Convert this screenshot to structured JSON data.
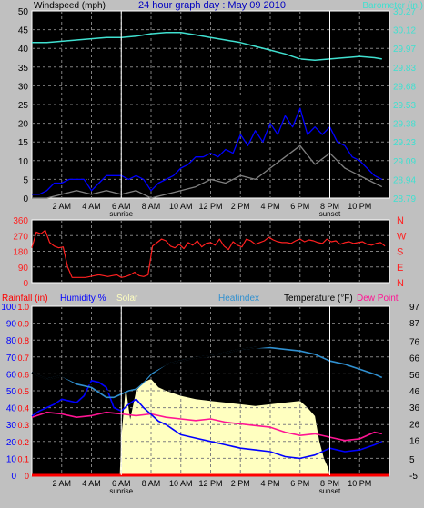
{
  "title": "24 hour graph day : May 09 2010",
  "colors": {
    "background": "#c0c0c0",
    "plot": "#000000",
    "grid": "#808080",
    "windspeed": "#000000",
    "windspeed_avg": "#0000ff",
    "windspeed_low": "#808080",
    "barometer": "#40e0d0",
    "direction": "#ff2020",
    "rainfall": "#ff0000",
    "humidity": "#0000ff",
    "solar": "#ffffc0",
    "heatindex": "#3090d0",
    "temperature": "#000000",
    "dewpoint": "#ff1493",
    "sun_marker": "#000000"
  },
  "labels": {
    "sunrise": "sunrise",
    "sunset": "sunset"
  },
  "chart_data": [
    {
      "type": "line",
      "ylabel": "Windspeed (mph)",
      "y2label": "Barometer (in.)",
      "ylim": [
        0,
        50
      ],
      "y2lim": [
        28.79,
        30.27
      ],
      "yticks": [
        "0",
        "5",
        "10",
        "15",
        "20",
        "25",
        "30",
        "35",
        "40",
        "45",
        "50"
      ],
      "y2ticks": [
        "28.79",
        "28.94",
        "29.09",
        "29.23",
        "29.38",
        "29.53",
        "29.68",
        "29.83",
        "29.97",
        "30.12",
        "30.27"
      ],
      "xlim": [
        0,
        24
      ],
      "xticks": [
        {
          "x": 2,
          "label": "2 AM"
        },
        {
          "x": 4,
          "label": "4 AM"
        },
        {
          "x": 6,
          "label": "6 AM"
        },
        {
          "x": 8,
          "label": "8 AM"
        },
        {
          "x": 10,
          "label": "10 AM"
        },
        {
          "x": 12,
          "label": "12 PM"
        },
        {
          "x": 14,
          "label": "2 PM"
        },
        {
          "x": 16,
          "label": "4 PM"
        },
        {
          "x": 18,
          "label": "6 PM"
        },
        {
          "x": 20,
          "label": "8 PM"
        },
        {
          "x": 22,
          "label": "10 PM"
        }
      ],
      "sunrise": 6,
      "sunset": 20,
      "series": [
        {
          "name": "Windspeed",
          "axis": "y",
          "x": [
            0,
            0.5,
            1,
            1.5,
            2,
            2.5,
            3,
            3.5,
            4,
            4.5,
            5,
            5.5,
            6,
            6.5,
            7,
            7.5,
            8,
            8.5,
            9,
            9.5,
            10,
            10.5,
            11,
            11.5,
            12,
            12.5,
            13,
            13.5,
            14,
            14.5,
            15,
            15.5,
            16,
            16.5,
            17,
            17.5,
            18,
            18.5,
            19,
            19.5,
            20,
            20.5,
            21,
            21.5,
            22,
            22.5,
            23,
            23.5
          ],
          "y": [
            1,
            2,
            3,
            6,
            8,
            9,
            7,
            8,
            2,
            8,
            9,
            8,
            9,
            7,
            10,
            6,
            3,
            7,
            8,
            11,
            14,
            15,
            17,
            16,
            21,
            18,
            22,
            19,
            27,
            20,
            29,
            23,
            33,
            25,
            35,
            29,
            37,
            23,
            32,
            24,
            27,
            22,
            21,
            15,
            13,
            10,
            8,
            6
          ]
        },
        {
          "name": "Windspeed Avg",
          "axis": "y",
          "x": [
            0,
            0.5,
            1,
            1.5,
            2,
            2.5,
            3,
            3.5,
            4,
            4.5,
            5,
            5.5,
            6,
            6.5,
            7,
            7.5,
            8,
            8.5,
            9,
            9.5,
            10,
            10.5,
            11,
            11.5,
            12,
            12.5,
            13,
            13.5,
            14,
            14.5,
            15,
            15.5,
            16,
            16.5,
            17,
            17.5,
            18,
            18.5,
            19,
            19.5,
            20,
            20.5,
            21,
            21.5,
            22,
            22.5,
            23,
            23.5
          ],
          "y": [
            1,
            1,
            2,
            4,
            4,
            5,
            5,
            5,
            2,
            4,
            6,
            6,
            6,
            5,
            6,
            5,
            2,
            4,
            5,
            6,
            8,
            9,
            11,
            11,
            12,
            11,
            13,
            12,
            17,
            14,
            18,
            15,
            20,
            17,
            22,
            19,
            24,
            17,
            19,
            17,
            19,
            15,
            14,
            11,
            10,
            8,
            6,
            5
          ]
        },
        {
          "name": "Windspeed Low",
          "axis": "y",
          "x": [
            0,
            1,
            2,
            3,
            4,
            5,
            6,
            7,
            8,
            9,
            10,
            11,
            12,
            13,
            14,
            15,
            16,
            17,
            18,
            19,
            20,
            21,
            22,
            23,
            23.5
          ],
          "y": [
            0,
            0,
            1,
            2,
            1,
            2,
            1,
            2,
            0,
            1,
            2,
            3,
            5,
            4,
            6,
            5,
            8,
            11,
            14,
            9,
            12,
            8,
            6,
            4,
            3
          ]
        },
        {
          "name": "Barometer",
          "axis": "y2",
          "x": [
            0,
            1,
            2,
            3,
            4,
            5,
            6,
            7,
            8,
            9,
            10,
            11,
            12,
            13,
            14,
            15,
            16,
            17,
            18,
            19,
            20,
            21,
            22,
            23,
            23.5
          ],
          "y": [
            30.02,
            30.02,
            30.03,
            30.04,
            30.05,
            30.06,
            30.06,
            30.07,
            30.09,
            30.1,
            30.1,
            30.08,
            30.06,
            30.04,
            30.02,
            29.99,
            29.96,
            29.93,
            29.89,
            29.88,
            29.89,
            29.9,
            29.91,
            29.9,
            29.89
          ]
        }
      ]
    },
    {
      "type": "line",
      "ylim": [
        0,
        360
      ],
      "yticks": [
        "0",
        "90",
        "180",
        "270",
        "360"
      ],
      "y2ticks": [
        "N",
        "E",
        "S",
        "W",
        "N"
      ],
      "xlim": [
        0,
        24
      ],
      "series": [
        {
          "name": "Wind Direction",
          "x": [
            0,
            0.3,
            0.6,
            0.9,
            1.2,
            1.5,
            1.8,
            2.1,
            2.4,
            2.7,
            3.0,
            3.3,
            3.6,
            3.9,
            4.2,
            4.5,
            4.8,
            5.1,
            5.4,
            5.7,
            6.0,
            6.3,
            6.6,
            6.9,
            7.2,
            7.5,
            7.8,
            8.1,
            8.4,
            8.7,
            9.0,
            9.3,
            9.6,
            9.9,
            10.2,
            10.5,
            10.8,
            11.1,
            11.4,
            11.7,
            12.0,
            12.3,
            12.6,
            12.9,
            13.2,
            13.5,
            13.8,
            14.1,
            14.4,
            14.7,
            15.0,
            15.3,
            15.6,
            15.9,
            16.2,
            16.5,
            16.8,
            17.1,
            17.4,
            17.7,
            18.0,
            18.3,
            18.6,
            18.9,
            19.2,
            19.5,
            19.8,
            20.1,
            20.4,
            20.7,
            21.0,
            21.3,
            21.6,
            21.9,
            22.2,
            22.5,
            22.8,
            23.1,
            23.4,
            23.7
          ],
          "y": [
            200,
            290,
            280,
            300,
            230,
            210,
            200,
            205,
            90,
            30,
            30,
            30,
            30,
            35,
            40,
            45,
            40,
            35,
            40,
            45,
            30,
            35,
            45,
            60,
            40,
            35,
            45,
            210,
            230,
            250,
            240,
            210,
            200,
            220,
            195,
            230,
            215,
            240,
            205,
            225,
            230,
            215,
            250,
            210,
            190,
            235,
            215,
            205,
            250,
            240,
            220,
            230,
            240,
            260,
            245,
            235,
            230,
            230,
            225,
            240,
            250,
            235,
            245,
            240,
            230,
            225,
            250,
            235,
            240,
            220,
            230,
            235,
            225,
            230,
            235,
            220,
            215,
            225,
            230,
            210
          ]
        }
      ]
    },
    {
      "type": "line",
      "ylabel_left": [
        "Rainfall (in)",
        "Humidity %",
        "Solar"
      ],
      "ylabel_right": [
        "Heatindex",
        "Temperature (°F)",
        "Dew Point"
      ],
      "ylim": [
        0,
        100
      ],
      "rain_ticks": [
        "0",
        "0.1",
        "0.2",
        "0.3",
        "0.4",
        "0.5",
        "0.6",
        "0.7",
        "0.8",
        "0.9",
        "1.0"
      ],
      "humidity_ticks": [
        "0",
        "10",
        "20",
        "30",
        "40",
        "50",
        "60",
        "70",
        "80",
        "90",
        "100"
      ],
      "temp_ticks": [
        "-5",
        "5",
        "16",
        "26",
        "36",
        "46",
        "56",
        "66",
        "76",
        "87",
        "97"
      ],
      "temp_lim": [
        -5,
        97
      ],
      "xlim": [
        0,
        24
      ],
      "xticks": [
        {
          "x": 2,
          "label": "2 AM"
        },
        {
          "x": 4,
          "label": "4 AM"
        },
        {
          "x": 6,
          "label": "6 AM"
        },
        {
          "x": 8,
          "label": "8 AM"
        },
        {
          "x": 10,
          "label": "10 AM"
        },
        {
          "x": 12,
          "label": "12 PM"
        },
        {
          "x": 14,
          "label": "2 PM"
        },
        {
          "x": 16,
          "label": "4 PM"
        },
        {
          "x": 18,
          "label": "6 PM"
        },
        {
          "x": 20,
          "label": "8 PM"
        },
        {
          "x": 22,
          "label": "10 PM"
        }
      ],
      "sunrise": 6,
      "sunset": 20,
      "series": [
        {
          "name": "Solar",
          "axis": "humidity",
          "x": [
            0,
            5.9,
            6.0,
            6.3,
            6.6,
            7.0,
            7.5,
            8.0,
            8.5,
            9.0,
            10,
            11,
            12,
            13,
            14,
            15,
            16,
            17,
            18,
            18.5,
            19.0,
            19.3,
            19.6,
            19.9,
            20.0,
            24
          ],
          "y": [
            0,
            0,
            22,
            52,
            33,
            50,
            55,
            57,
            52,
            50,
            47,
            45,
            44,
            43,
            42,
            41,
            42,
            43,
            44,
            40,
            35,
            20,
            10,
            4,
            0,
            0
          ]
        },
        {
          "name": "Temperature",
          "axis": "temp",
          "x": [
            0,
            1,
            2,
            3,
            4,
            5,
            5.5,
            6,
            6.5,
            7,
            7.5,
            8,
            9,
            10,
            11,
            12,
            13,
            14,
            15,
            16,
            17,
            18,
            19,
            20,
            21,
            22,
            23,
            23.5
          ],
          "y": [
            57,
            53,
            55,
            51,
            50,
            46,
            44,
            45,
            47,
            48,
            52,
            57,
            62,
            64,
            66,
            67,
            69,
            71,
            72,
            73,
            73,
            72,
            70,
            67,
            64,
            61,
            58,
            55
          ]
        },
        {
          "name": "Heatindex",
          "axis": "temp",
          "x": [
            0,
            1,
            2,
            3,
            4,
            5,
            5.5,
            6,
            6.5,
            7,
            7.5,
            8,
            9,
            10,
            11,
            12,
            13,
            14,
            15,
            16,
            17,
            18,
            19,
            20,
            21,
            22,
            23,
            23.5
          ],
          "y": [
            57,
            53,
            55,
            50,
            48,
            42,
            42,
            44,
            46,
            47,
            51,
            56,
            62,
            64,
            66,
            67,
            69,
            71,
            72,
            72,
            71,
            70,
            68,
            64,
            62,
            59,
            56,
            54
          ]
        },
        {
          "name": "Humidity",
          "axis": "humidity",
          "x": [
            0,
            0.5,
            1,
            1.5,
            2,
            2.5,
            3,
            3.5,
            4,
            4.5,
            5,
            5.5,
            6,
            6.5,
            7,
            7.5,
            8,
            8.5,
            9,
            9.5,
            10,
            11,
            12,
            13,
            14,
            15,
            16,
            17,
            18,
            19,
            20,
            21,
            22,
            23,
            23.5
          ],
          "y": [
            35,
            38,
            40,
            42,
            45,
            44,
            43,
            47,
            56,
            55,
            52,
            40,
            38,
            42,
            45,
            40,
            36,
            32,
            30,
            27,
            24,
            22,
            20,
            18,
            16,
            15,
            14,
            11,
            10,
            12,
            16,
            14,
            15,
            18,
            20
          ]
        },
        {
          "name": "Dew Point",
          "axis": "temp",
          "x": [
            0,
            1,
            2,
            3,
            4,
            5,
            6,
            7,
            8,
            9,
            10,
            11,
            12,
            13,
            14,
            15,
            16,
            17,
            18,
            19,
            20,
            21,
            22,
            23,
            23.5
          ],
          "y": [
            30,
            33,
            32,
            30,
            31,
            33,
            32,
            31,
            32,
            30,
            29,
            28,
            29,
            27,
            26,
            25,
            24,
            21,
            19,
            20,
            18,
            16,
            17,
            21,
            20
          ]
        },
        {
          "name": "Rainfall",
          "axis": "rain",
          "x": [
            0,
            24
          ],
          "y": [
            0,
            0
          ]
        }
      ]
    }
  ]
}
